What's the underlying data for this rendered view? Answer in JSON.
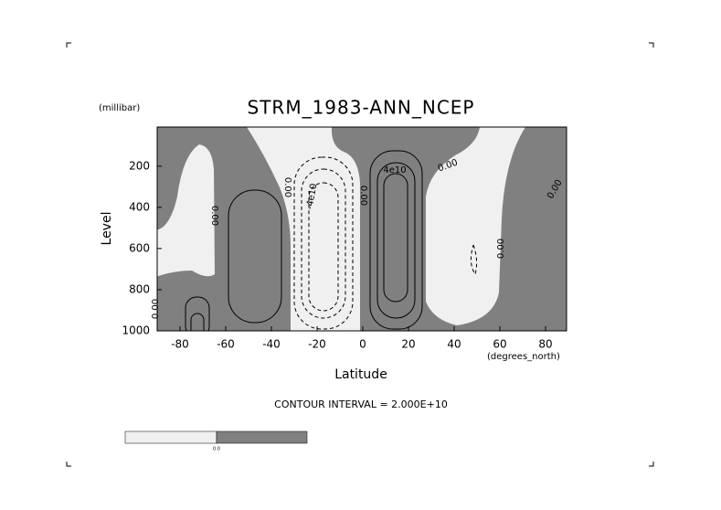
{
  "chart_data": {
    "type": "contour",
    "title": "STRM_1983-ANN_NCEP",
    "x_label": "Latitude",
    "x_units": "(degrees_north)",
    "y_label": "Level",
    "y_units": "(millibar)",
    "xlim": [
      -90,
      90
    ],
    "ylim": [
      1000,
      10
    ],
    "xticks": [
      -80,
      -60,
      -40,
      -20,
      0,
      20,
      40,
      60,
      80
    ],
    "yticks": [
      200,
      400,
      600,
      800,
      1000
    ],
    "contour_labels": [
      "0.00",
      "-4e10",
      "0.00",
      "0.00",
      "4e10",
      "0.00",
      "0.00",
      "0.00",
      "0.00"
    ],
    "footnote": "CONTOUR INTERVAL = 2.000E+10",
    "colorbar_labels": [
      "0.0"
    ],
    "colors": {
      "positive": "#808080",
      "negative": "#f0f0f0"
    }
  }
}
